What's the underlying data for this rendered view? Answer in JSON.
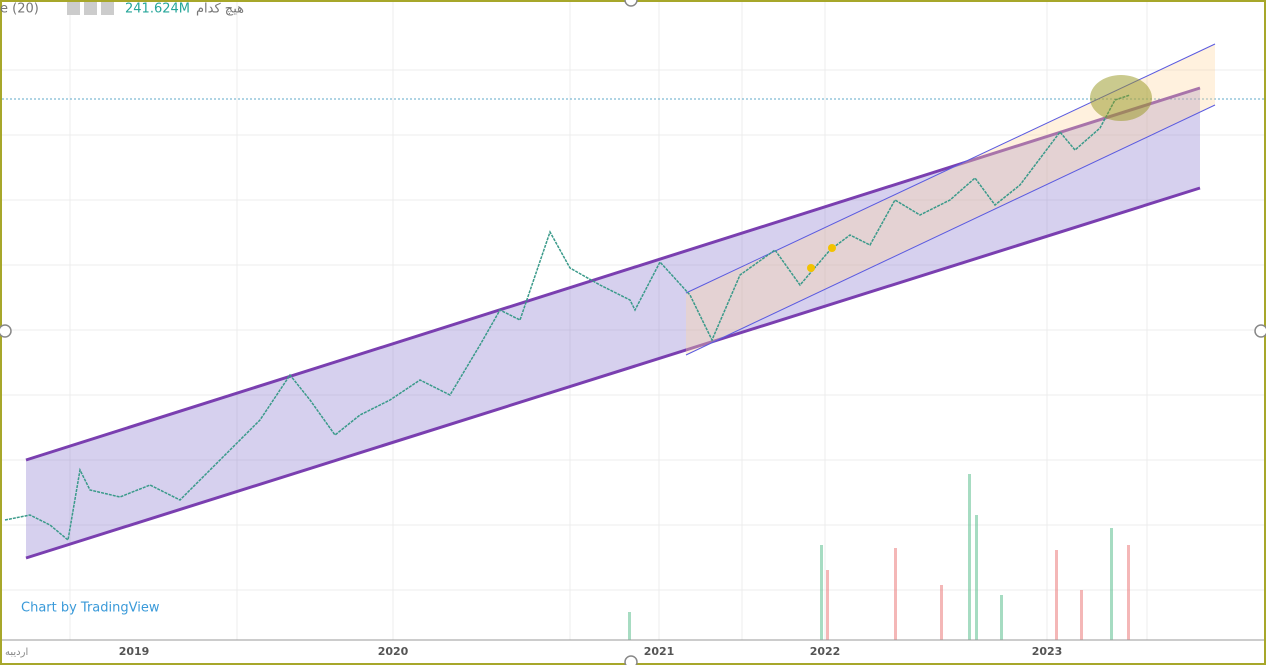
{
  "header": {
    "indicator": "e (20)",
    "volume": "241.624M",
    "symbol_note": "هیچ کدام"
  },
  "x_axis": {
    "labels": [
      "2019",
      "2020",
      "2021",
      "2022",
      "2023"
    ],
    "corner_label": "اردیبه"
  },
  "watermark": "Chart by TradingView"
}
